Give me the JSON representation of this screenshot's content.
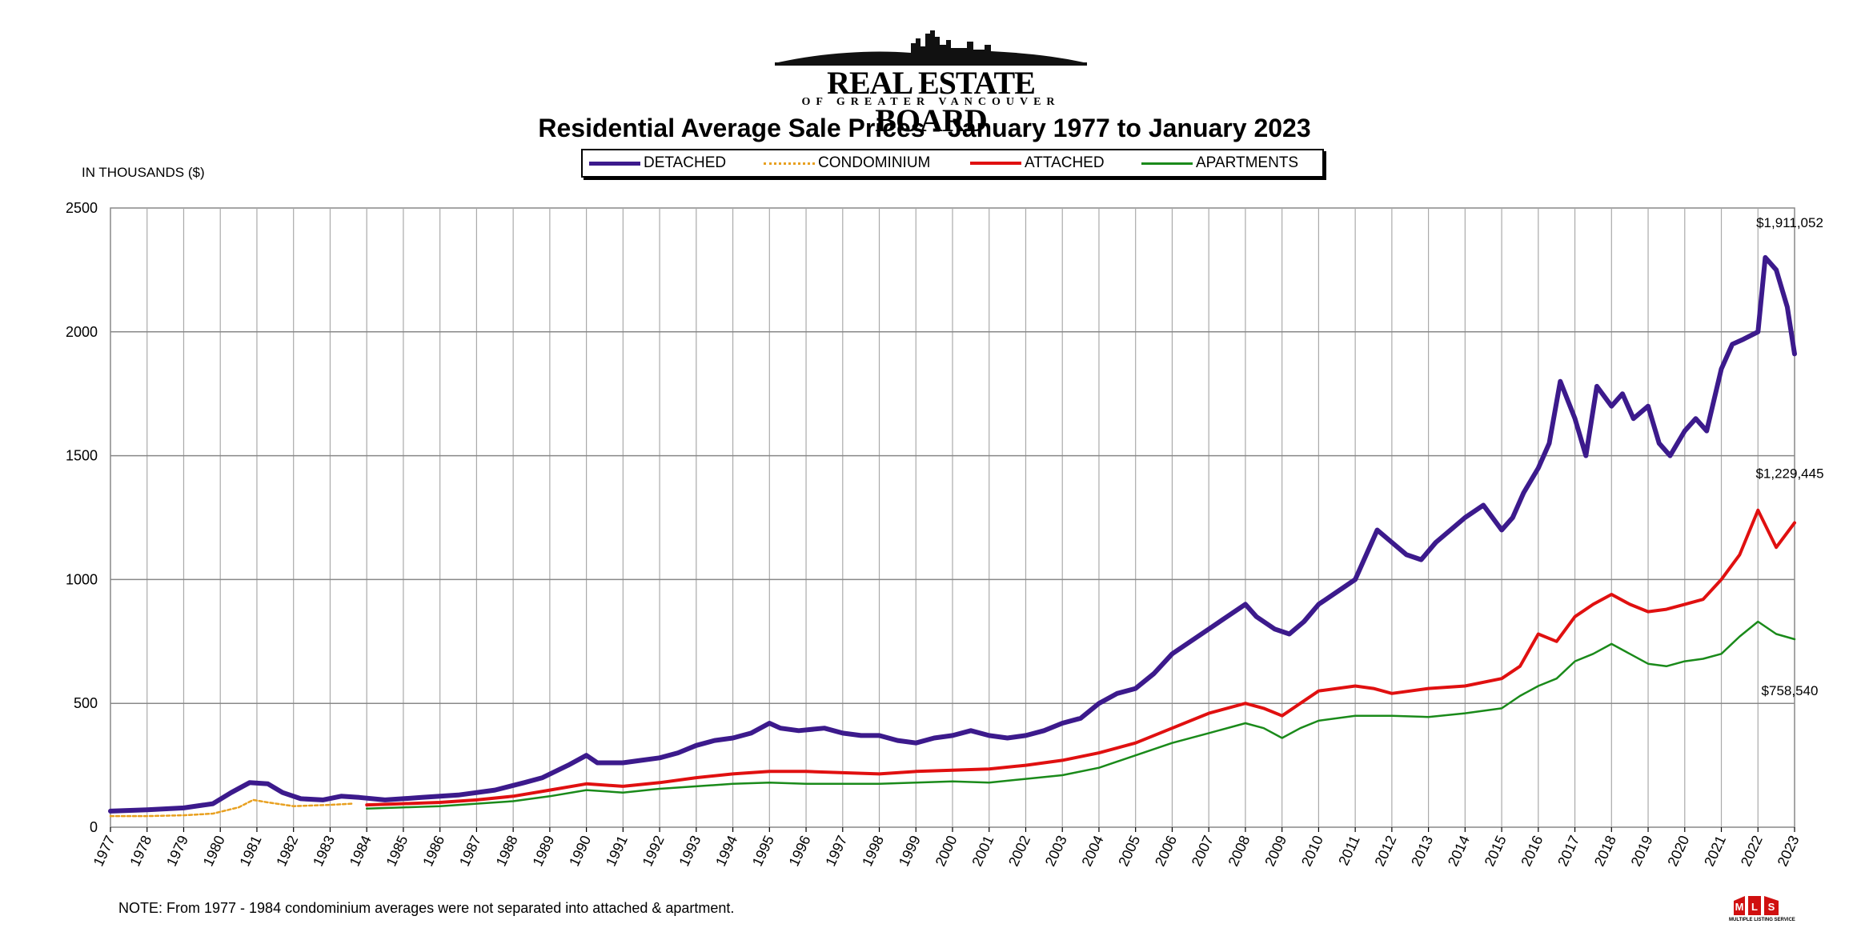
{
  "header": {
    "logo_title": "REAL ESTATE BOARD",
    "logo_subtitle": "OF GREATER VANCOUVER",
    "mls_label": "MULTIPLE LISTING SERVICE"
  },
  "footer": {
    "note": "NOTE:  From 1977 - 1984 condominium averages were not separated into attached & apartment."
  },
  "colors": {
    "detached": "#3c1a8c",
    "condominium": "#e8a020",
    "attached": "#e01010",
    "apartments": "#1a8a1a"
  },
  "chart_data": {
    "type": "line",
    "title": "Residential Average Sale Prices  -  January 1977 to January 2023",
    "ylabel": "IN THOUSANDS ($)",
    "xlabel": "",
    "ylim": [
      0,
      2500
    ],
    "yticks": [
      0,
      500,
      1000,
      1500,
      2000,
      2500
    ],
    "xlim": [
      1977,
      2023
    ],
    "xticks": [
      "1977",
      "1978",
      "1979",
      "1980",
      "1981",
      "1982",
      "1983",
      "1984",
      "1985",
      "1986",
      "1987",
      "1988",
      "1989",
      "1990",
      "1991",
      "1992",
      "1993",
      "1994",
      "1995",
      "1996",
      "1997",
      "1998",
      "1999",
      "2000",
      "2001",
      "2002",
      "2003",
      "2004",
      "2005",
      "2006",
      "2007",
      "2008",
      "2009",
      "2010",
      "2011",
      "2012",
      "2013",
      "2014",
      "2015",
      "2016",
      "2017",
      "2018",
      "2019",
      "2020",
      "2021",
      "2022",
      "2023"
    ],
    "grid": true,
    "legend": "top-center",
    "series": [
      {
        "name": "DETACHED",
        "style": "solid-thick",
        "x": [
          1977,
          1978,
          1979,
          1979.8,
          1980.3,
          1980.8,
          1981.3,
          1981.7,
          1982.2,
          1982.8,
          1983.3,
          1983.8,
          1984.5,
          1985.5,
          1986.5,
          1987.5,
          1988.3,
          1988.8,
          1989.5,
          1990,
          1990.3,
          1991,
          1991.5,
          1992,
          1992.5,
          1993,
          1993.5,
          1994,
          1994.5,
          1995,
          1995.3,
          1995.8,
          1996.5,
          1997,
          1997.5,
          1998,
          1998.5,
          1999,
          1999.5,
          2000,
          2000.5,
          2001,
          2001.5,
          2002,
          2002.5,
          2003,
          2003.5,
          2004,
          2004.5,
          2005,
          2005.5,
          2006,
          2006.5,
          2007,
          2007.5,
          2008,
          2008.3,
          2008.8,
          2009.2,
          2009.6,
          2010,
          2010.5,
          2011,
          2011.3,
          2011.6,
          2012,
          2012.4,
          2012.8,
          2013.2,
          2013.6,
          2014,
          2014.5,
          2015,
          2015.3,
          2015.6,
          2016,
          2016.3,
          2016.6,
          2017,
          2017.3,
          2017.6,
          2018,
          2018.3,
          2018.6,
          2019,
          2019.3,
          2019.6,
          2020,
          2020.3,
          2020.6,
          2021,
          2021.3,
          2021.6,
          2022,
          2022.2,
          2022.5,
          2022.8,
          2023
        ],
        "y": [
          65,
          70,
          78,
          95,
          140,
          180,
          175,
          140,
          115,
          110,
          125,
          120,
          110,
          120,
          130,
          150,
          180,
          200,
          250,
          290,
          260,
          260,
          270,
          280,
          300,
          330,
          350,
          360,
          380,
          420,
          400,
          390,
          400,
          380,
          370,
          370,
          350,
          340,
          360,
          370,
          390,
          370,
          360,
          370,
          390,
          420,
          440,
          500,
          540,
          560,
          620,
          700,
          750,
          800,
          850,
          900,
          850,
          800,
          780,
          830,
          900,
          950,
          1000,
          1100,
          1200,
          1150,
          1100,
          1080,
          1150,
          1200,
          1250,
          1300,
          1200,
          1250,
          1350,
          1450,
          1550,
          1800,
          1650,
          1500,
          1780,
          1700,
          1750,
          1650,
          1700,
          1550,
          1500,
          1600,
          1650,
          1600,
          1850,
          1950,
          1970,
          2000,
          2300,
          2250,
          2100,
          1911
        ]
      },
      {
        "name": "CONDOMINIUM",
        "style": "dotted",
        "x": [
          1977,
          1978,
          1979,
          1979.8,
          1980.5,
          1980.9,
          1981.3,
          1982,
          1983,
          1983.6
        ],
        "y": [
          45,
          45,
          48,
          55,
          80,
          110,
          100,
          85,
          90,
          95
        ]
      },
      {
        "name": "ATTACHED",
        "style": "solid",
        "x": [
          1984,
          1985,
          1986,
          1987,
          1988,
          1989,
          1990,
          1991,
          1992,
          1993,
          1994,
          1995,
          1996,
          1997,
          1998,
          1999,
          2000,
          2001,
          2002,
          2003,
          2004,
          2005,
          2006,
          2007,
          2008,
          2008.5,
          2009,
          2009.5,
          2010,
          2011,
          2011.5,
          2012,
          2013,
          2014,
          2015,
          2015.5,
          2016,
          2016.5,
          2017,
          2017.5,
          2018,
          2018.5,
          2019,
          2019.5,
          2020,
          2020.5,
          2021,
          2021.5,
          2022,
          2022.5,
          2023
        ],
        "y": [
          90,
          95,
          100,
          110,
          125,
          150,
          175,
          165,
          180,
          200,
          215,
          225,
          225,
          220,
          215,
          225,
          230,
          235,
          250,
          270,
          300,
          340,
          400,
          460,
          500,
          480,
          450,
          500,
          550,
          570,
          560,
          540,
          560,
          570,
          600,
          650,
          780,
          750,
          850,
          900,
          940,
          900,
          870,
          880,
          900,
          920,
          1000,
          1100,
          1280,
          1130,
          1229
        ]
      },
      {
        "name": "APARTMENTS",
        "style": "solid",
        "x": [
          1984,
          1985,
          1986,
          1987,
          1988,
          1989,
          1990,
          1991,
          1992,
          1993,
          1994,
          1995,
          1996,
          1997,
          1998,
          1999,
          2000,
          2001,
          2002,
          2003,
          2004,
          2005,
          2006,
          2007,
          2008,
          2008.5,
          2009,
          2009.5,
          2010,
          2011,
          2012,
          2013,
          2014,
          2015,
          2015.5,
          2016,
          2016.5,
          2017,
          2017.5,
          2018,
          2018.5,
          2019,
          2019.5,
          2020,
          2020.5,
          2021,
          2021.5,
          2022,
          2022.5,
          2023
        ],
        "y": [
          75,
          80,
          85,
          95,
          105,
          125,
          150,
          140,
          155,
          165,
          175,
          180,
          175,
          175,
          175,
          180,
          185,
          180,
          195,
          210,
          240,
          290,
          340,
          380,
          420,
          400,
          360,
          400,
          430,
          450,
          450,
          445,
          460,
          480,
          530,
          570,
          600,
          670,
          700,
          740,
          700,
          660,
          650,
          670,
          680,
          700,
          770,
          830,
          780,
          759
        ]
      }
    ],
    "annotations": [
      {
        "label": "$1,911,052",
        "series": "DETACHED"
      },
      {
        "label": "$1,229,445",
        "series": "ATTACHED"
      },
      {
        "label": "$758,540",
        "series": "APARTMENTS"
      }
    ]
  }
}
